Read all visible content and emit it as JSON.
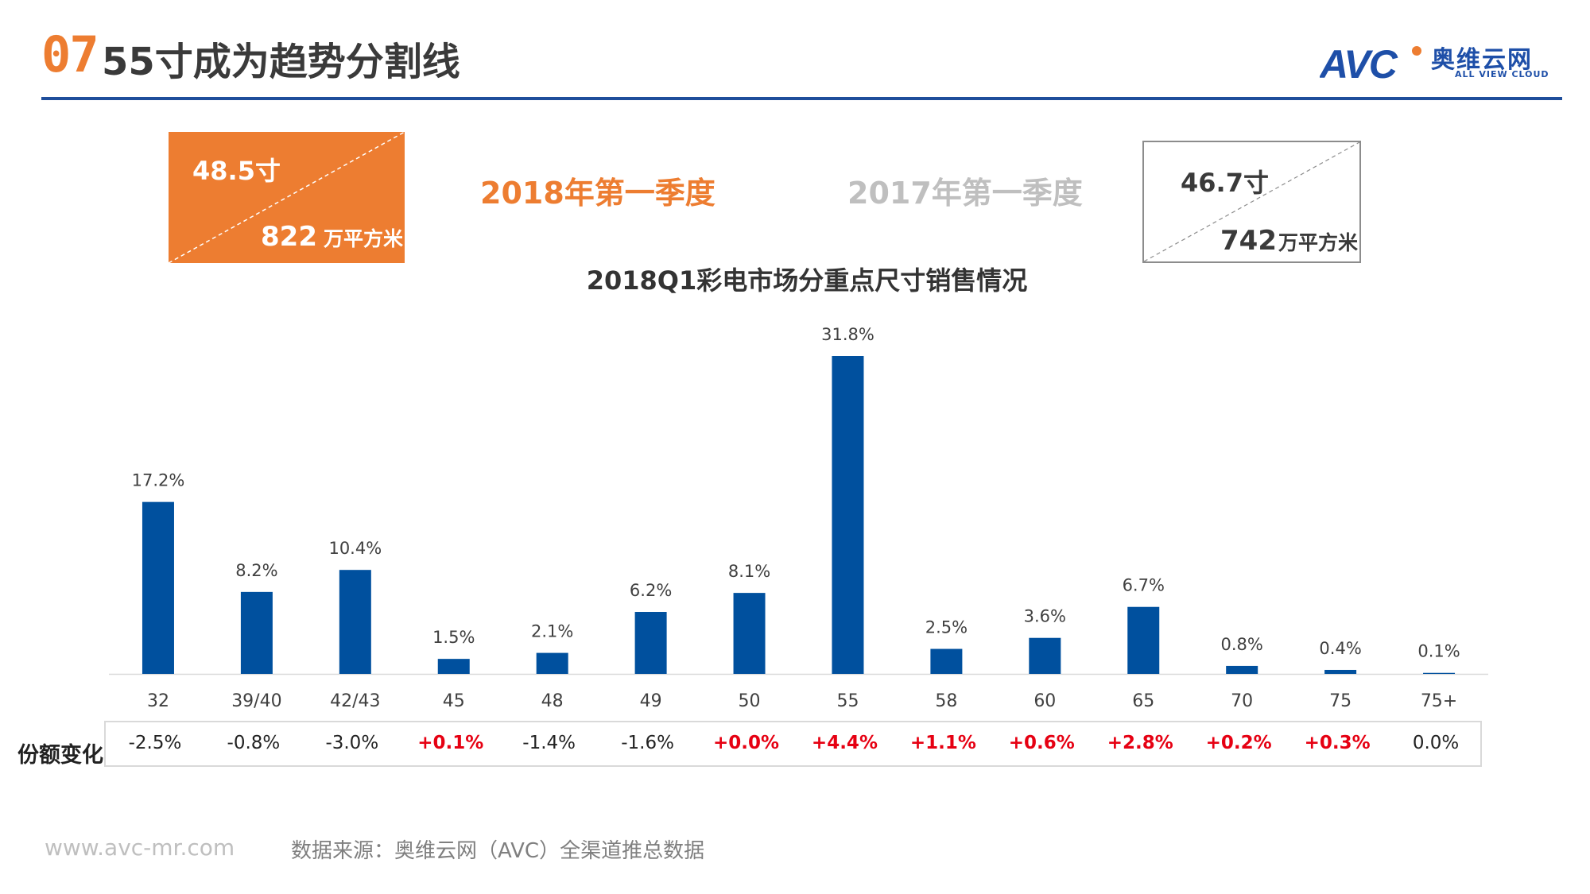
{
  "header": {
    "section_number": "07",
    "title": "55寸成为趋势分割线",
    "logo": {
      "mark": "AVC",
      "name_cn": "奥维云网",
      "name_en": "ALL VIEW CLOUD"
    }
  },
  "summary": {
    "current": {
      "period": "2018年第一季度",
      "avg_size": "48.5寸",
      "area_value": "822",
      "area_unit": "万平方米"
    },
    "previous": {
      "period": "2017年第一季度",
      "avg_size": "46.7寸",
      "area_value": "742",
      "area_unit": "万平方米"
    }
  },
  "share_change": {
    "label": "份额变化",
    "values": [
      "-2.5%",
      "-0.8%",
      "-3.0%",
      "+0.1%",
      "-1.4%",
      "-1.6%",
      "+0.0%",
      "+4.4%",
      "+1.1%",
      "+0.6%",
      "+2.8%",
      "+0.2%",
      "+0.3%",
      "0.0%"
    ],
    "positive": [
      false,
      false,
      false,
      true,
      false,
      false,
      true,
      true,
      true,
      true,
      true,
      true,
      true,
      false
    ]
  },
  "footer": {
    "url": "www.avc-mr.com",
    "source": "数据来源：奥维云网（AVC）全渠道推总数据"
  },
  "colors": {
    "accent_orange": "#ED7D31",
    "bar_blue": "#00509E",
    "header_rule": "#1F4E9B",
    "positive_red": "#E60012",
    "muted_gray": "#BFBFBF"
  },
  "chart_data": {
    "type": "bar",
    "title": "2018Q1彩电市场分重点尺寸销售情况",
    "xlabel": "",
    "ylabel": "",
    "categories": [
      "32",
      "39/40",
      "42/43",
      "45",
      "48",
      "49",
      "50",
      "55",
      "58",
      "60",
      "65",
      "70",
      "75",
      "75+"
    ],
    "values": [
      17.2,
      8.2,
      10.4,
      1.5,
      2.1,
      6.2,
      8.1,
      31.8,
      2.5,
      3.6,
      6.7,
      0.8,
      0.4,
      0.1
    ],
    "value_labels": [
      "17.2%",
      "8.2%",
      "10.4%",
      "1.5%",
      "2.1%",
      "6.2%",
      "8.1%",
      "31.8%",
      "2.5%",
      "3.6%",
      "6.7%",
      "0.8%",
      "0.4%",
      "0.1%"
    ],
    "unit": "%",
    "ylim": [
      0,
      33
    ],
    "grid": false,
    "legend": "none",
    "show_value_axis": false
  }
}
